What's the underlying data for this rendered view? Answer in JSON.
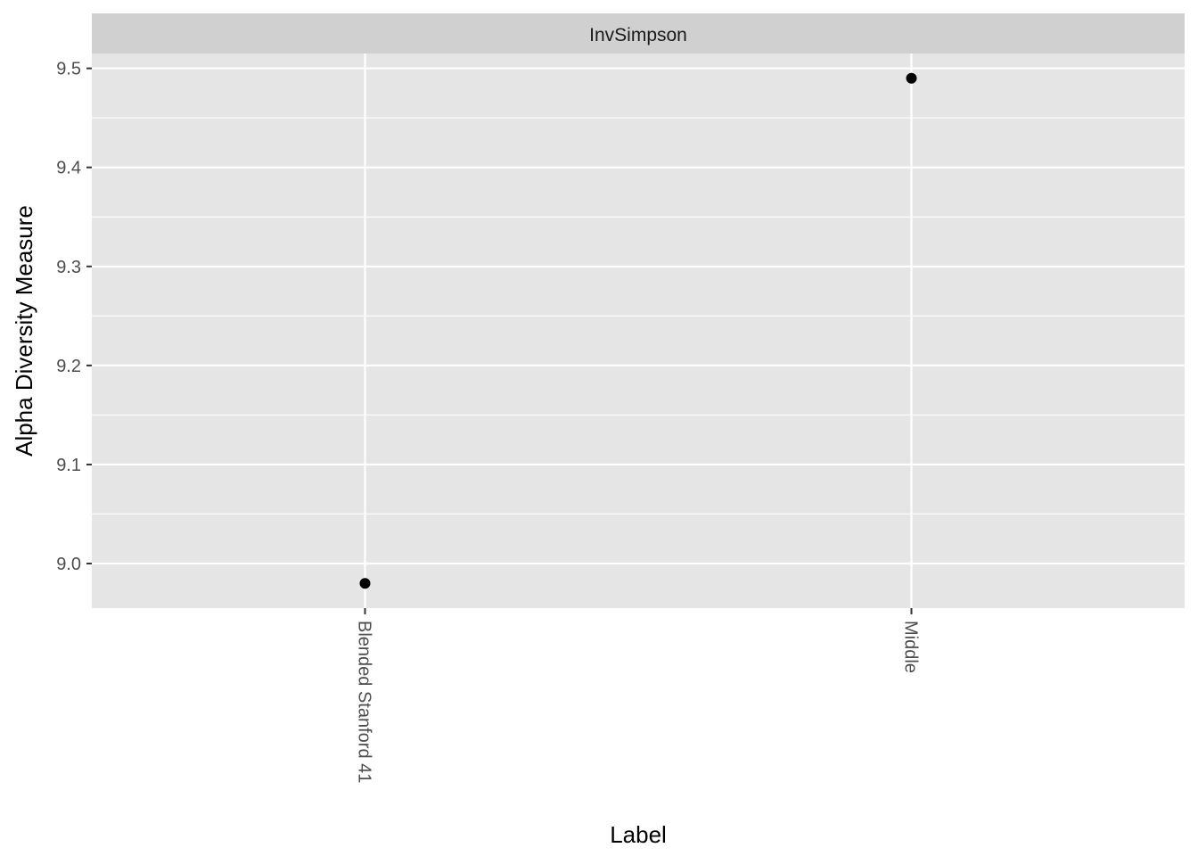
{
  "chart_data": {
    "type": "scatter",
    "facet": "InvSimpson",
    "xlabel": "Label",
    "ylabel": "Alpha Diversity Measure",
    "categories": [
      "Blended Stanford 41",
      "Middle"
    ],
    "values": [
      8.98,
      9.49
    ],
    "ylim": [
      8.955,
      9.515
    ],
    "yticks": [
      9.0,
      9.1,
      9.2,
      9.3,
      9.4,
      9.5
    ],
    "ytick_labels": [
      "9.0",
      "9.1",
      "9.2",
      "9.3",
      "9.4",
      "9.5"
    ],
    "grid": true,
    "colors": {
      "panel_background": "#e5e5e5",
      "strip_background": "#d0d0d0",
      "grid": "#ffffff",
      "point": "#000000"
    }
  }
}
